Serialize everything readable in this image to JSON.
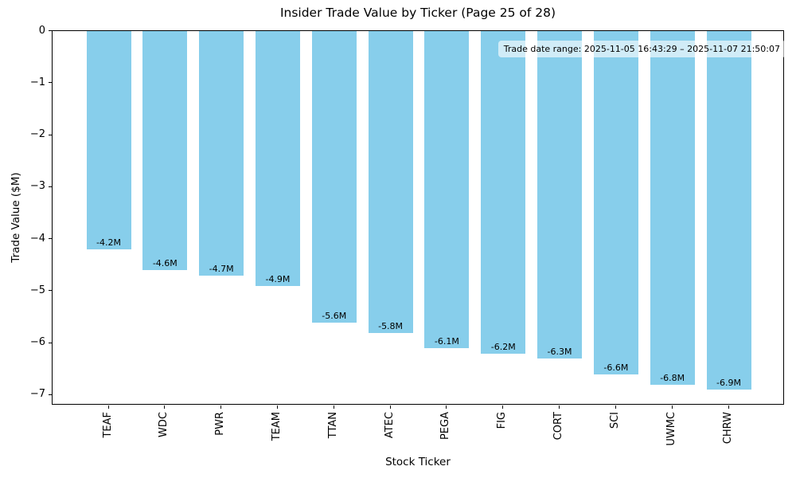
{
  "chart_data": {
    "type": "bar",
    "title": "Insider Trade Value by Ticker (Page 25 of 28)",
    "xlabel": "Stock Ticker",
    "ylabel": "Trade Value ($M)",
    "annotation": "Trade date range: 2025-11-05 16:43:29 – 2025-11-07 21:50:07",
    "categories": [
      "TEAF",
      "WDC",
      "PWR",
      "TEAM",
      "TTAN",
      "ATEC",
      "PEGA",
      "FIG",
      "CORT",
      "SCI",
      "UWMC",
      "CHRW"
    ],
    "values": [
      -4.2,
      -4.6,
      -4.7,
      -4.9,
      -5.6,
      -5.8,
      -6.1,
      -6.2,
      -6.3,
      -6.6,
      -6.8,
      -6.9
    ],
    "bar_labels": [
      "-4.2M",
      "-4.6M",
      "-4.7M",
      "-4.9M",
      "-5.6M",
      "-5.8M",
      "-6.1M",
      "-6.2M",
      "-6.3M",
      "-6.6M",
      "-6.8M",
      "-6.9M"
    ],
    "bar_color": "#87CEEB",
    "text_color": "#000000",
    "ylim": [
      -7.2,
      0
    ],
    "yticks": [
      0,
      -1,
      -2,
      -3,
      -4,
      -5,
      -6,
      -7
    ],
    "ytick_labels": [
      "0",
      "−1",
      "−2",
      "−3",
      "−4",
      "−5",
      "−6",
      "−7"
    ],
    "grid": false,
    "legend": false
  }
}
